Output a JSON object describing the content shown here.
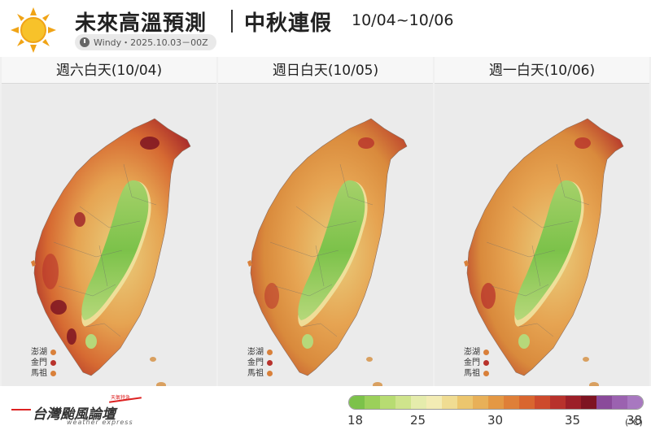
{
  "header": {
    "title": "未來高溫預測",
    "subtitle": "中秋連假",
    "date_range": "10/04~10/06",
    "source": "Windy・2025.10.03－00Z"
  },
  "panels": [
    {
      "label": "週六白天(10/04)",
      "heat": 1.0
    },
    {
      "label": "週日白天(10/05)",
      "heat": 0.55
    },
    {
      "label": "週一白天(10/06)",
      "heat": 0.7
    }
  ],
  "islands": [
    {
      "name": "澎湖",
      "color": "#d9803a"
    },
    {
      "name": "金門",
      "color": "#b8322c"
    },
    {
      "name": "馬祖",
      "color": "#d9803a"
    }
  ],
  "footer": {
    "logo_text": "台灣颱風論壇",
    "logo_sub": "weather express",
    "logo_tag": "天氣特急",
    "unit": "(°C)"
  },
  "legend": {
    "colors": [
      "#7cc24a",
      "#9bd05a",
      "#b7dc72",
      "#cfe48c",
      "#e5ecac",
      "#f3ecb4",
      "#f0dc92",
      "#ecc66e",
      "#e8b058",
      "#e49844",
      "#df7f38",
      "#d9662f",
      "#cd4a2c",
      "#b8322c",
      "#9c1f28",
      "#7e1422",
      "#8a4a9a",
      "#9b62b0",
      "#a878c0"
    ],
    "ticks": [
      {
        "label": "18",
        "index": 0
      },
      {
        "label": "25",
        "index": 4
      },
      {
        "label": "30",
        "index": 9
      },
      {
        "label": "35",
        "index": 14
      },
      {
        "label": "38",
        "index": 18
      }
    ]
  }
}
